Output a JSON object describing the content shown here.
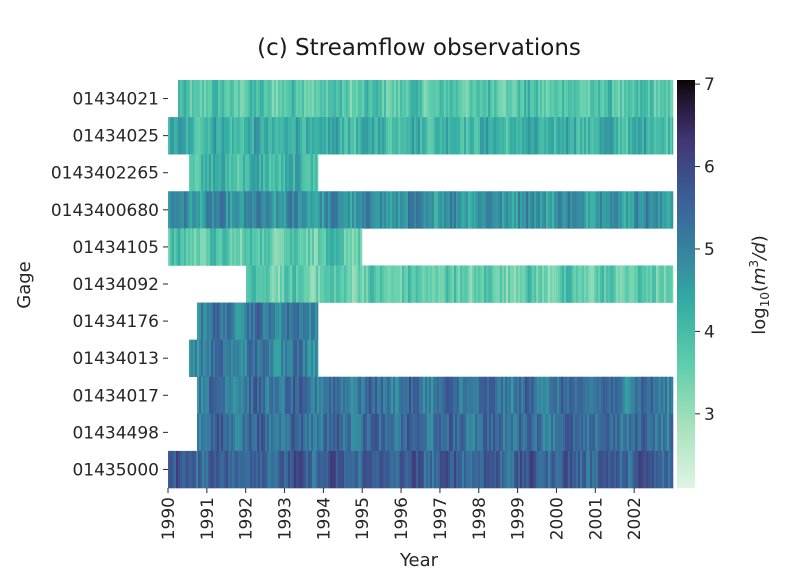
{
  "chart_data": {
    "type": "heatmap",
    "title": "(c) Streamflow observations",
    "xlabel": "Year",
    "ylabel": "Gage",
    "xlim": [
      1990,
      2003
    ],
    "x_ticks": [
      "1990",
      "1991",
      "1992",
      "1993",
      "1994",
      "1995",
      "1996",
      "1997",
      "1998",
      "1999",
      "2000",
      "2001",
      "2002"
    ],
    "gages": [
      {
        "id": "01434021",
        "start": 1990.25,
        "end": 2003.0,
        "mean": 3.75
      },
      {
        "id": "01434025",
        "start": 1990.0,
        "end": 2003.0,
        "mean": 4.2
      },
      {
        "id": "0143402265",
        "start": 1990.55,
        "end": 1993.85,
        "mean": 4.1
      },
      {
        "id": "0143400680",
        "start": 1990.0,
        "end": 2003.0,
        "mean": 4.75
      },
      {
        "id": "01434105",
        "start": 1990.0,
        "end": 1995.0,
        "mean": 3.7
      },
      {
        "id": "01434092",
        "start": 1992.0,
        "end": 2003.0,
        "mean": 3.6
      },
      {
        "id": "01434176",
        "start": 1990.75,
        "end": 1993.85,
        "mean": 5.15
      },
      {
        "id": "01434013",
        "start": 1990.55,
        "end": 1993.85,
        "mean": 5.1
      },
      {
        "id": "01434017",
        "start": 1990.75,
        "end": 2003.0,
        "mean": 5.25
      },
      {
        "id": "01434498",
        "start": 1990.75,
        "end": 2003.0,
        "mean": 5.35
      },
      {
        "id": "01435000",
        "start": 1990.0,
        "end": 2003.0,
        "mean": 5.6
      }
    ],
    "colorbar": {
      "label_prefix": "log",
      "label_sub": "10",
      "label_open": "(",
      "label_var_m": "m",
      "label_sup": "3",
      "label_var_d": "/d",
      "label_close": ")",
      "vmin": 2.1,
      "vmax": 7.05,
      "ticks": [
        "3",
        "4",
        "5",
        "6",
        "7"
      ],
      "colormap": "mako_r",
      "color_low": "#def5e5",
      "color_high": "#0b0405"
    },
    "grid": false,
    "legend": "none"
  }
}
